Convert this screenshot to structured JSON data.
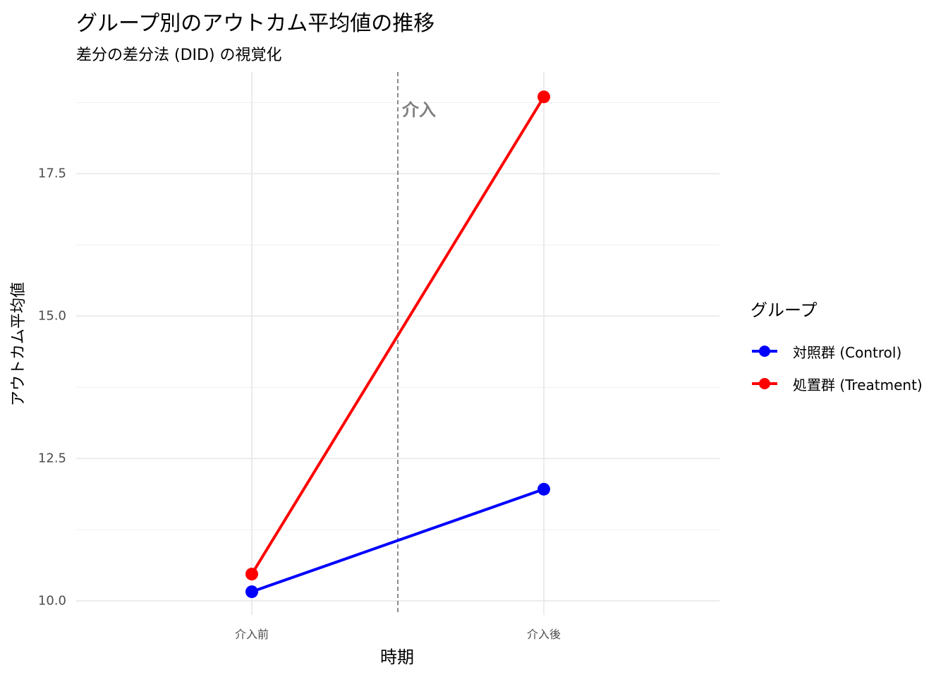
{
  "title": "グループ別のアウトカム平均値の推移",
  "subtitle": "差分の差分法 (DID) の視覚化",
  "chart_data": {
    "type": "line",
    "categories": [
      "介入前",
      "介入後"
    ],
    "series": [
      {
        "name": "対照群 (Control)",
        "color": "#0000FF",
        "values": [
          10.16,
          11.96
        ]
      },
      {
        "name": "処置群 (Treatment)",
        "color": "#FF0000",
        "values": [
          10.47,
          18.85
        ]
      }
    ],
    "xlabel": "時期",
    "ylabel": "アウトカム平均値",
    "yticks": [
      "10.0",
      "12.5",
      "15.0",
      "17.5"
    ],
    "ylim": [
      9.98,
      19.35
    ],
    "annotation": {
      "text": "介入",
      "x_position": 1.5
    },
    "legend": {
      "title": "グループ",
      "placement": "right"
    },
    "grid": true
  }
}
